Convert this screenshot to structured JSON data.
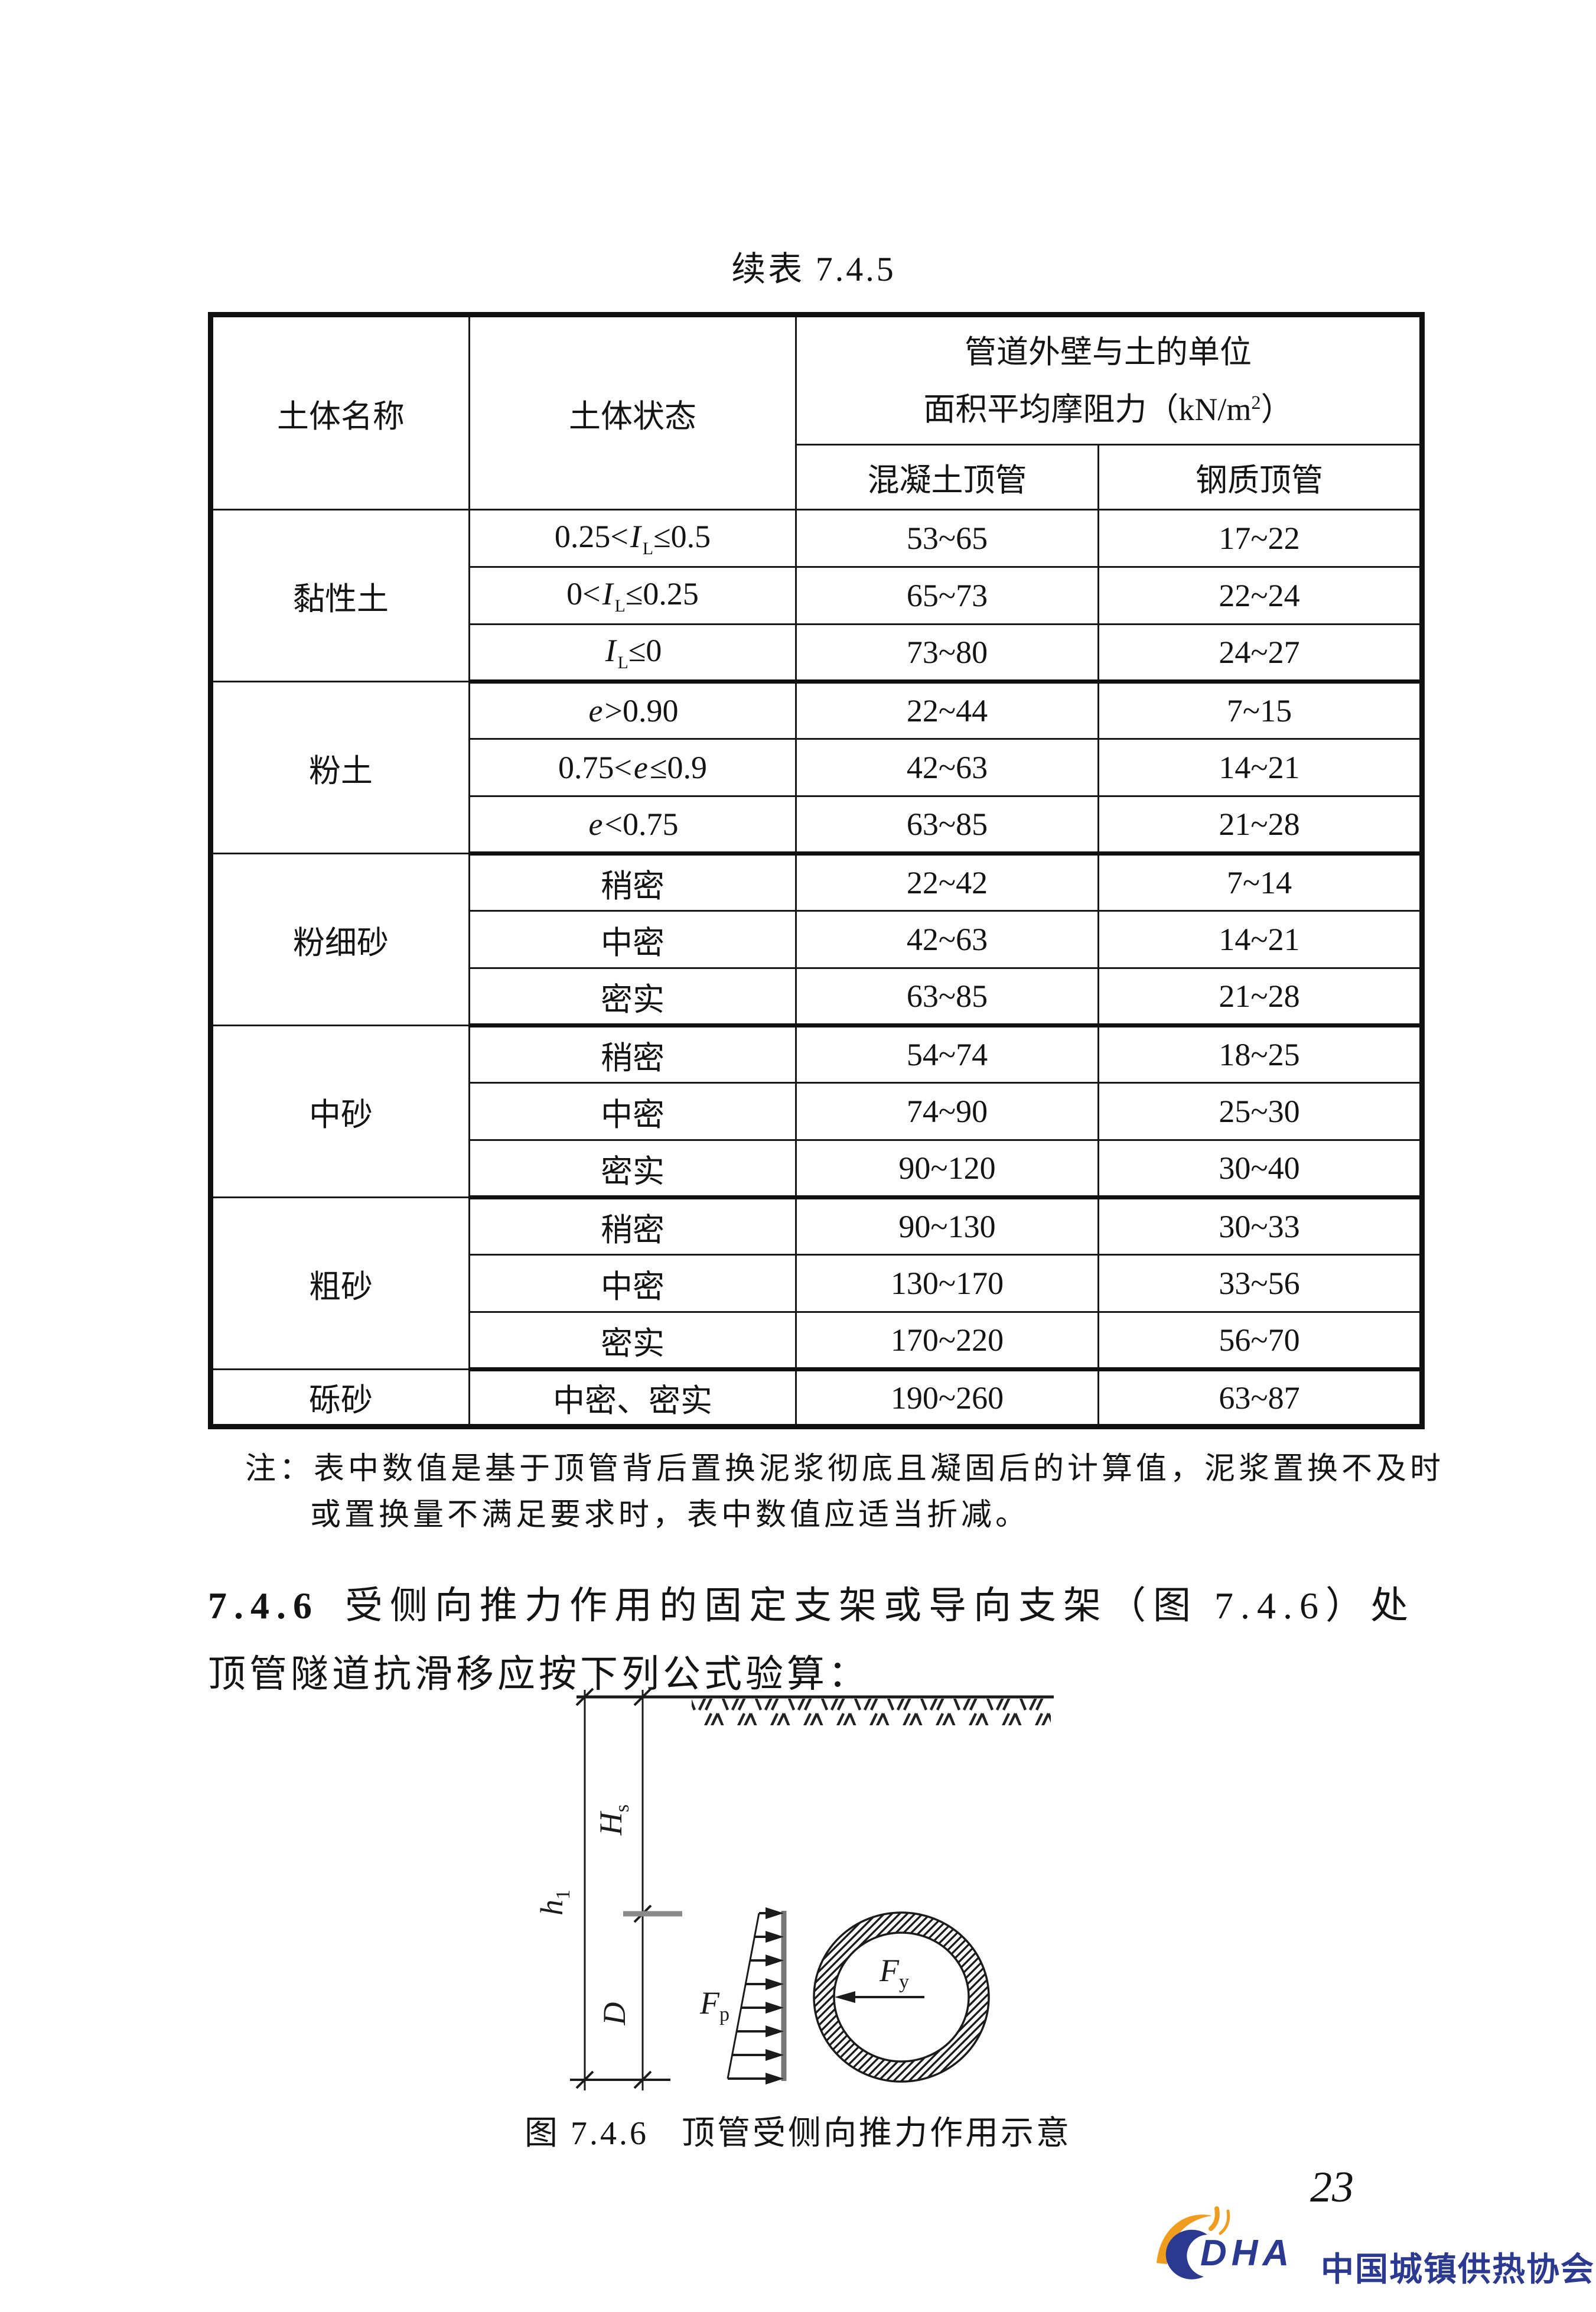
{
  "page": {
    "table_title": "续表 7.4.5",
    "page_number": "23"
  },
  "table": {
    "col_soil_name": "土体名称",
    "col_soil_state": "土体状态",
    "unit_header_line1": "管道外壁与土的单位",
    "unit_header_line2_pre": "面积平均摩阻力（kN/m",
    "unit_header_sup": "2",
    "unit_header_line2_post": "）",
    "col_concrete": "混凝土顶管",
    "col_steel": "钢质顶管",
    "groups": [
      {
        "name": "黏性土",
        "rows": [
          {
            "state": [
              {
                "t": "0.25<"
              },
              {
                "t": "I",
                "s": "i"
              },
              {
                "t": "L",
                "s": "sub"
              },
              {
                "t": "≤0.5"
              }
            ],
            "concrete": "53~65",
            "steel": "17~22"
          },
          {
            "state": [
              {
                "t": "0<"
              },
              {
                "t": "I",
                "s": "i"
              },
              {
                "t": "L",
                "s": "sub"
              },
              {
                "t": "≤0.25"
              }
            ],
            "concrete": "65~73",
            "steel": "22~24"
          },
          {
            "state": [
              {
                "t": "I",
                "s": "i"
              },
              {
                "t": "L",
                "s": "sub"
              },
              {
                "t": "≤0"
              }
            ],
            "concrete": "73~80",
            "steel": "24~27"
          }
        ]
      },
      {
        "name": "粉土",
        "rows": [
          {
            "state": [
              {
                "t": "e",
                "s": "i"
              },
              {
                "t": ">0.90"
              }
            ],
            "concrete": "22~44",
            "steel": "7~15"
          },
          {
            "state": [
              {
                "t": "0.75<"
              },
              {
                "t": "e",
                "s": "i"
              },
              {
                "t": "≤0.9"
              }
            ],
            "concrete": "42~63",
            "steel": "14~21"
          },
          {
            "state": [
              {
                "t": "e",
                "s": "i"
              },
              {
                "t": "<0.75"
              }
            ],
            "concrete": "63~85",
            "steel": "21~28"
          }
        ]
      },
      {
        "name": "粉细砂",
        "rows": [
          {
            "state": [
              {
                "t": "稍密"
              }
            ],
            "concrete": "22~42",
            "steel": "7~14"
          },
          {
            "state": [
              {
                "t": "中密"
              }
            ],
            "concrete": "42~63",
            "steel": "14~21"
          },
          {
            "state": [
              {
                "t": "密实"
              }
            ],
            "concrete": "63~85",
            "steel": "21~28"
          }
        ]
      },
      {
        "name": "中砂",
        "rows": [
          {
            "state": [
              {
                "t": "稍密"
              }
            ],
            "concrete": "54~74",
            "steel": "18~25"
          },
          {
            "state": [
              {
                "t": "中密"
              }
            ],
            "concrete": "74~90",
            "steel": "25~30"
          },
          {
            "state": [
              {
                "t": "密实"
              }
            ],
            "concrete": "90~120",
            "steel": "30~40"
          }
        ]
      },
      {
        "name": "粗砂",
        "rows": [
          {
            "state": [
              {
                "t": "稍密"
              }
            ],
            "concrete": "90~130",
            "steel": "30~33"
          },
          {
            "state": [
              {
                "t": "中密"
              }
            ],
            "concrete": "130~170",
            "steel": "33~56"
          },
          {
            "state": [
              {
                "t": "密实"
              }
            ],
            "concrete": "170~220",
            "steel": "56~70"
          }
        ]
      },
      {
        "name": "砾砂",
        "rows": [
          {
            "state": [
              {
                "t": "中密、密实"
              }
            ],
            "concrete": "190~260",
            "steel": "63~87"
          }
        ]
      }
    ]
  },
  "note": {
    "label": "注：",
    "line1": "表中数值是基于顶管背后置换泥浆彻底且凝固后的计算值，泥浆置换不及时",
    "line2": "或置换量不满足要求时，表中数值应适当折减。"
  },
  "section": {
    "number": "7.4.6",
    "line1_text": "受侧向推力作用的固定支架或导向支架（图 7.4.6）处",
    "line2_text": "顶管隧道抗滑移应按下列公式验算："
  },
  "figure": {
    "caption_label": "图 7.4.6",
    "caption_text": "顶管受侧向推力作用示意",
    "labels": {
      "h1": {
        "base": "h",
        "sub": "1"
      },
      "Hs": {
        "base": "H",
        "sub": "s"
      },
      "D": {
        "base": "D",
        "sub": ""
      },
      "Fp": {
        "base": "F",
        "sub": "p"
      },
      "Fy": {
        "base": "F",
        "sub": "y"
      }
    }
  },
  "footer": {
    "logo_acronym": "DHA",
    "logo_name": "中国城镇供热协会"
  },
  "colors": {
    "navy": "#2b3a90",
    "orange": "#f09c1e",
    "line_gray": "#8a8a8a"
  }
}
